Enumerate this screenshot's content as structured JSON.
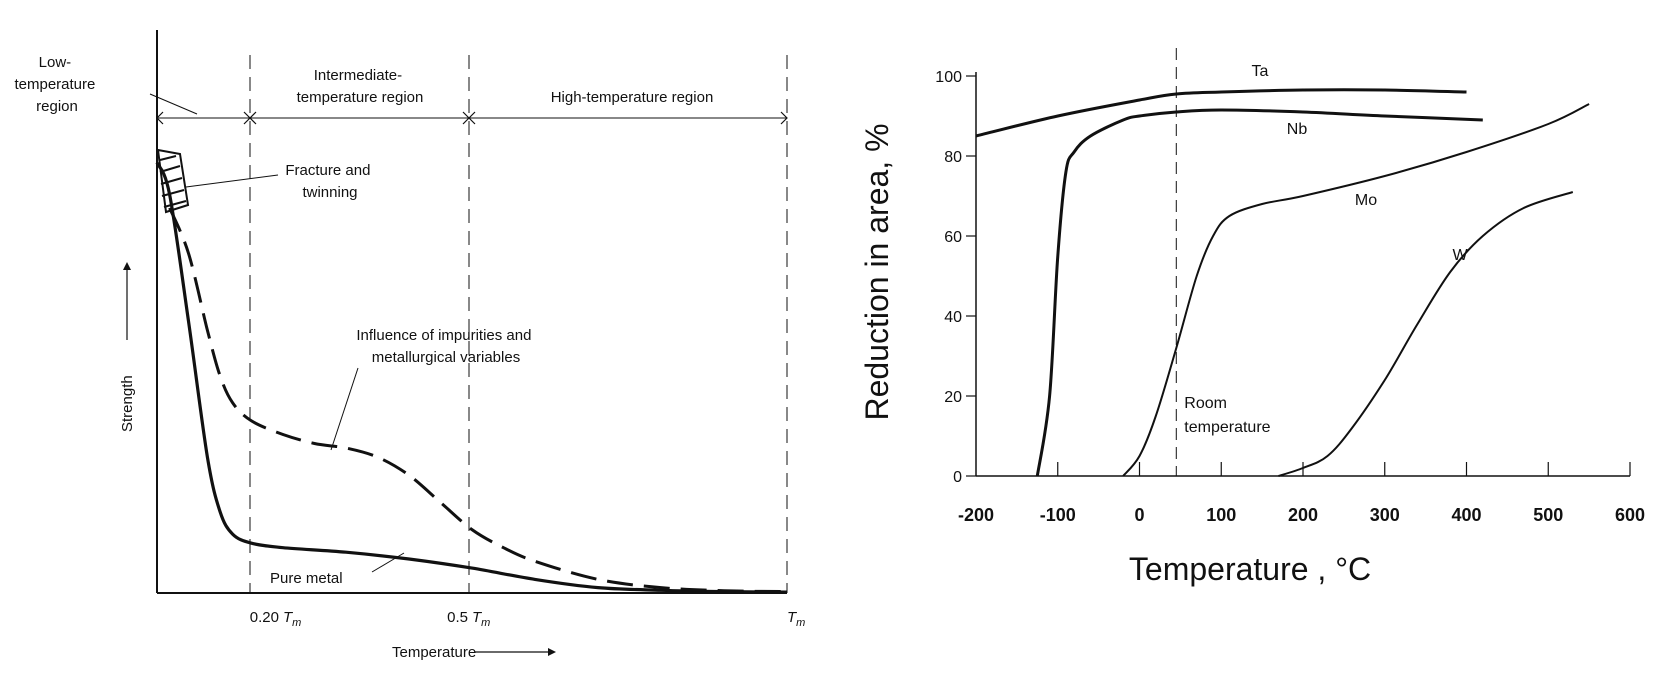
{
  "chart_data": [
    {
      "type": "line",
      "xlabel": "Temperature",
      "ylabel": "Strength",
      "x_ticks": [
        {
          "x": 0.2,
          "label": "0.20",
          "sub": "T",
          "subscript": "m"
        },
        {
          "x": 0.5,
          "label": "0.5",
          "sub": "T",
          "subscript": "m"
        },
        {
          "x": 1.0,
          "label": "",
          "sub": "T",
          "subscript": "m"
        }
      ],
      "regions": [
        {
          "label_lines": [
            "Low-",
            "temperature",
            "region"
          ]
        },
        {
          "label_lines": [
            "Intermediate-",
            "temperature region"
          ]
        },
        {
          "label_lines": [
            "High-temperature region"
          ]
        }
      ],
      "annotations": {
        "fracture": [
          "Fracture and",
          "twinning"
        ],
        "impurities": [
          "Influence of impurities and",
          "metallurgical variables"
        ],
        "pure": "Pure metal"
      },
      "series": [
        {
          "name": "Pure metal",
          "style": "solid",
          "x": [
            0.0,
            0.02,
            0.05,
            0.08,
            0.1,
            0.12,
            0.15,
            0.2,
            0.3,
            0.4,
            0.5,
            0.6,
            0.7,
            0.8,
            0.9,
            1.0
          ],
          "y": [
            0.95,
            0.88,
            0.6,
            0.3,
            0.18,
            0.13,
            0.11,
            0.1,
            0.09,
            0.075,
            0.055,
            0.03,
            0.012,
            0.006,
            0.003,
            0.002
          ]
        },
        {
          "name": "Influence of impurities and metallurgical variables",
          "style": "dashed",
          "x": [
            0.02,
            0.05,
            0.08,
            0.1,
            0.12,
            0.15,
            0.2,
            0.25,
            0.3,
            0.35,
            0.4,
            0.45,
            0.5,
            0.55,
            0.6,
            0.7,
            0.8,
            0.9,
            1.0
          ],
          "y": [
            0.85,
            0.75,
            0.58,
            0.48,
            0.42,
            0.38,
            0.35,
            0.33,
            0.32,
            0.3,
            0.26,
            0.2,
            0.14,
            0.1,
            0.07,
            0.03,
            0.012,
            0.005,
            0.003
          ]
        }
      ],
      "colors": {
        "ink": "#111111"
      }
    },
    {
      "type": "line",
      "xlabel": "Temperature , °C",
      "ylabel": "Reduction in area, %",
      "xlim": [
        -200,
        600
      ],
      "ylim": [
        0,
        100
      ],
      "x_ticks": [
        -200,
        -100,
        0,
        100,
        200,
        300,
        400,
        500,
        600
      ],
      "y_ticks": [
        0,
        20,
        40,
        60,
        80,
        100
      ],
      "reference_line": {
        "x": 45,
        "label_lines": [
          "Room",
          "temperature"
        ]
      },
      "series": [
        {
          "name": "Ta",
          "x": [
            -200,
            -100,
            0,
            45,
            100,
            200,
            300,
            400
          ],
          "y": [
            85,
            90,
            94,
            95.5,
            96,
            96.5,
            96.5,
            96
          ]
        },
        {
          "name": "Nb",
          "x": [
            -125,
            -110,
            -100,
            -90,
            -80,
            -60,
            -20,
            0,
            45,
            100,
            200,
            300,
            420
          ],
          "y": [
            0,
            20,
            55,
            76,
            81,
            85,
            89,
            90,
            91,
            91.5,
            91,
            90,
            89
          ]
        },
        {
          "name": "Mo",
          "x": [
            -20,
            0,
            20,
            45,
            70,
            90,
            110,
            150,
            200,
            300,
            400,
            500,
            550
          ],
          "y": [
            0,
            5,
            15,
            32,
            50,
            60,
            65,
            68,
            70,
            75,
            81,
            88,
            93
          ]
        },
        {
          "name": "W",
          "x": [
            170,
            200,
            230,
            260,
            300,
            340,
            380,
            420,
            470,
            530
          ],
          "y": [
            0,
            2,
            5,
            12,
            24,
            38,
            51,
            60,
            67,
            71
          ]
        }
      ],
      "colors": {
        "ink": "#111111"
      }
    }
  ]
}
